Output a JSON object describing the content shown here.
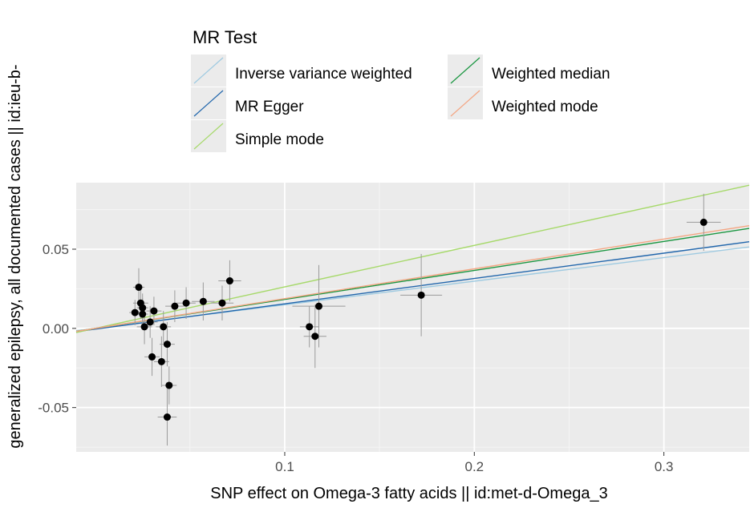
{
  "chart_data": {
    "type": "scatter",
    "xlabel": "SNP effect on Omega-3 fatty acids || id:met-d-Omega_3",
    "ylabel": "generalized epilepsy, all documented cases || id:ieu-b-",
    "xlim": [
      -0.01,
      0.345
    ],
    "ylim": [
      -0.078,
      0.092
    ],
    "x_ticks": [
      0.1,
      0.2,
      0.3
    ],
    "x_tick_labels": [
      "0.1",
      "0.2",
      "0.3"
    ],
    "y_ticks": [
      -0.05,
      0.0,
      0.05
    ],
    "y_tick_labels": [
      "-0.05",
      "0.00",
      "0.05"
    ],
    "grid": true,
    "legend": {
      "title": "MR Test",
      "position": "top",
      "entries": [
        "Inverse variance weighted",
        "MR Egger",
        "Simple mode",
        "Weighted median",
        "Weighted mode"
      ]
    },
    "lines": [
      {
        "name": "Inverse variance weighted",
        "color": "#9ecae1",
        "slope": 0.149,
        "intercept": 0.0
      },
      {
        "name": "MR Egger",
        "color": "#2166ac",
        "slope": 0.16,
        "intercept": -0.0005
      },
      {
        "name": "Simple mode",
        "color": "#a6d96a",
        "slope": 0.262,
        "intercept": 0.0
      },
      {
        "name": "Weighted median",
        "color": "#1a9641",
        "slope": 0.183,
        "intercept": 0.0
      },
      {
        "name": "Weighted mode",
        "color": "#f4a582",
        "slope": 0.188,
        "intercept": 0.0
      }
    ],
    "points": [
      {
        "x": 0.021,
        "y": 0.01,
        "xerr": 0.003,
        "yerr": 0.008
      },
      {
        "x": 0.023,
        "y": 0.026,
        "xerr": 0.003,
        "yerr": 0.012
      },
      {
        "x": 0.024,
        "y": 0.016,
        "xerr": 0.004,
        "yerr": 0.01
      },
      {
        "x": 0.025,
        "y": 0.013,
        "xerr": 0.003,
        "yerr": 0.009
      },
      {
        "x": 0.025,
        "y": 0.009,
        "xerr": 0.003,
        "yerr": 0.01
      },
      {
        "x": 0.026,
        "y": 0.001,
        "xerr": 0.004,
        "yerr": 0.011
      },
      {
        "x": 0.029,
        "y": 0.004,
        "xerr": 0.004,
        "yerr": 0.01
      },
      {
        "x": 0.03,
        "y": -0.018,
        "xerr": 0.004,
        "yerr": 0.012
      },
      {
        "x": 0.031,
        "y": 0.011,
        "xerr": 0.004,
        "yerr": 0.009
      },
      {
        "x": 0.035,
        "y": -0.021,
        "xerr": 0.004,
        "yerr": 0.016
      },
      {
        "x": 0.036,
        "y": 0.001,
        "xerr": 0.004,
        "yerr": 0.01
      },
      {
        "x": 0.038,
        "y": -0.01,
        "xerr": 0.004,
        "yerr": 0.014
      },
      {
        "x": 0.038,
        "y": -0.056,
        "xerr": 0.005,
        "yerr": 0.018
      },
      {
        "x": 0.039,
        "y": -0.036,
        "xerr": 0.004,
        "yerr": 0.012
      },
      {
        "x": 0.042,
        "y": 0.014,
        "xerr": 0.005,
        "yerr": 0.01
      },
      {
        "x": 0.048,
        "y": 0.016,
        "xerr": 0.005,
        "yerr": 0.01
      },
      {
        "x": 0.057,
        "y": 0.017,
        "xerr": 0.006,
        "yerr": 0.012
      },
      {
        "x": 0.067,
        "y": 0.016,
        "xerr": 0.006,
        "yerr": 0.011
      },
      {
        "x": 0.071,
        "y": 0.03,
        "xerr": 0.006,
        "yerr": 0.013
      },
      {
        "x": 0.113,
        "y": 0.001,
        "xerr": 0.005,
        "yerr": 0.013
      },
      {
        "x": 0.116,
        "y": -0.005,
        "xerr": 0.006,
        "yerr": 0.02
      },
      {
        "x": 0.118,
        "y": 0.014,
        "xerr": 0.014,
        "yerr": 0.026
      },
      {
        "x": 0.172,
        "y": 0.021,
        "xerr": 0.011,
        "yerr": 0.026
      },
      {
        "x": 0.321,
        "y": 0.067,
        "xerr": 0.009,
        "yerr": 0.018
      }
    ]
  }
}
